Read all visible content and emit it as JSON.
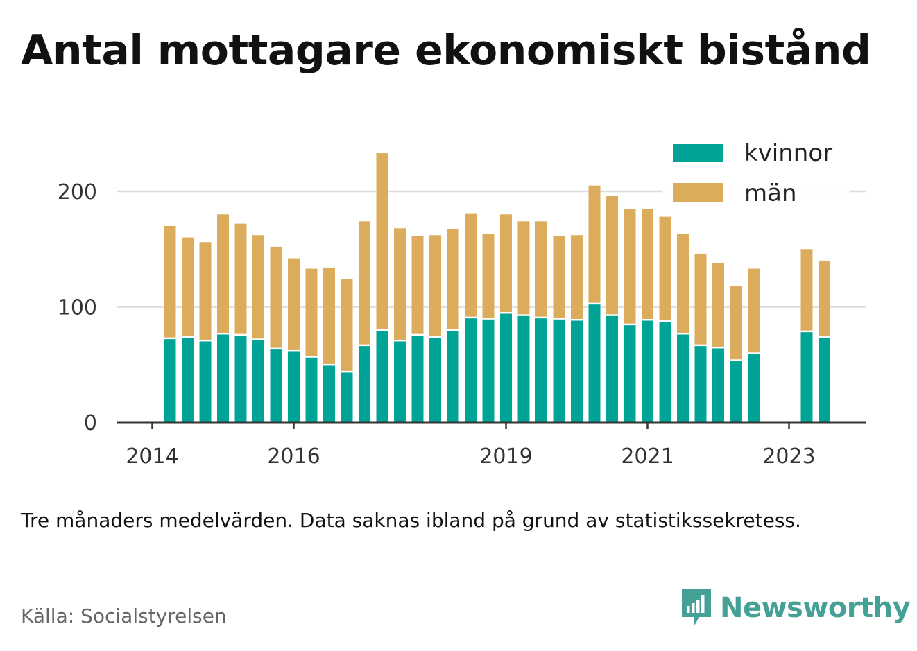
{
  "title": "Antal mottagare ekonomiskt bistånd",
  "note": "Tre månaders medelvärden. Data saknas ibland på grund av statistikssekretess.",
  "source": "Källa: Socialstyrelsen",
  "brand": {
    "name": "Newsworthy",
    "icon": "newsworthy-logo-icon",
    "color": "#45a095"
  },
  "colors": {
    "kvinnor": "#00a497",
    "man": "#dbac5b",
    "grid": "#dddddd",
    "axis": "#333333"
  },
  "chart_data": {
    "type": "bar",
    "stacked": true,
    "x_unit": "quarter",
    "x_ticks": [
      {
        "label": "2014",
        "at": "2014-Q1"
      },
      {
        "label": "2016",
        "at": "2016-Q1"
      },
      {
        "label": "2019",
        "at": "2019-Q1"
      },
      {
        "label": "2021",
        "at": "2021-Q1"
      },
      {
        "label": "2023",
        "at": "2023-Q1"
      }
    ],
    "y_ticks": [
      0,
      100,
      200
    ],
    "ylim": [
      0,
      240
    ],
    "grid": true,
    "legend": "top-right",
    "categories": [
      "2014-Q2",
      "2014-Q3",
      "2014-Q4",
      "2015-Q1",
      "2015-Q2",
      "2015-Q3",
      "2015-Q4",
      "2016-Q1",
      "2016-Q2",
      "2016-Q3",
      "2016-Q4",
      "2017-Q1",
      "2017-Q2",
      "2017-Q3",
      "2017-Q4",
      "2018-Q1",
      "2018-Q2",
      "2018-Q3",
      "2018-Q4",
      "2019-Q1",
      "2019-Q2",
      "2019-Q3",
      "2019-Q4",
      "2020-Q1",
      "2020-Q2",
      "2020-Q3",
      "2020-Q4",
      "2021-Q1",
      "2021-Q2",
      "2021-Q3",
      "2021-Q4",
      "2022-Q1",
      "2022-Q2",
      "2022-Q3",
      "2022-Q4",
      "2023-Q1",
      "2023-Q2",
      "2023-Q3"
    ],
    "series": [
      {
        "name": "kvinnor",
        "values": [
          72,
          73,
          70,
          76,
          75,
          71,
          63,
          61,
          56,
          49,
          43,
          66,
          79,
          70,
          75,
          73,
          79,
          90,
          89,
          94,
          92,
          90,
          89,
          88,
          102,
          92,
          84,
          88,
          87,
          76,
          66,
          64,
          53,
          59,
          null,
          null,
          78,
          73
        ]
      },
      {
        "name": "män",
        "values": [
          98,
          87,
          86,
          104,
          97,
          91,
          89,
          81,
          77,
          85,
          81,
          108,
          154,
          98,
          86,
          89,
          88,
          91,
          74,
          86,
          82,
          84,
          72,
          74,
          103,
          104,
          101,
          97,
          91,
          87,
          80,
          74,
          65,
          74,
          null,
          null,
          72,
          67
        ]
      }
    ]
  }
}
